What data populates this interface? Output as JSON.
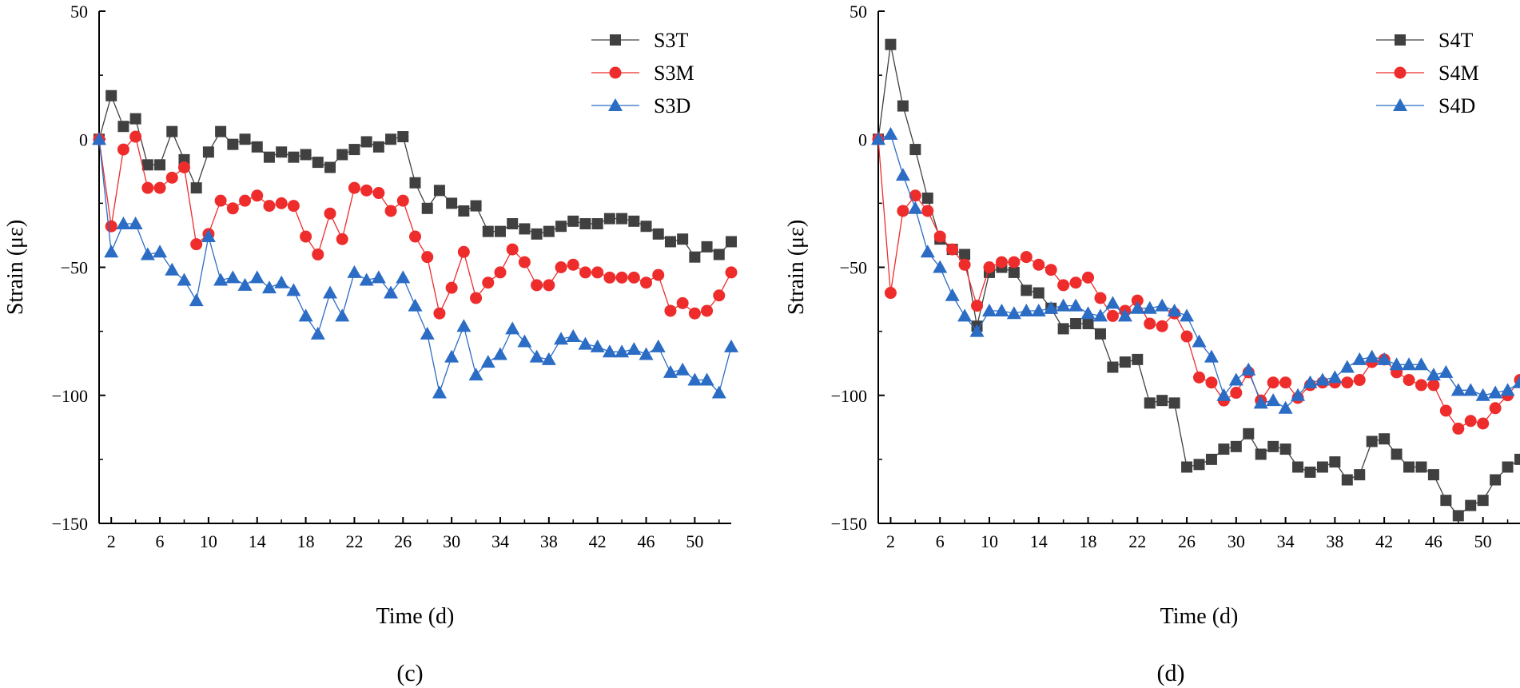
{
  "colors": {
    "T": "#404040",
    "M": "#ee2c2c",
    "D": "#2b6cc4"
  },
  "chart_data": [
    {
      "type": "line",
      "caption": "(c)",
      "xlabel": "Time (d)",
      "ylabel": "Strain (με)",
      "xlim": [
        1,
        53
      ],
      "ylim": [
        -150,
        50
      ],
      "xticks": [
        2,
        6,
        10,
        14,
        18,
        22,
        26,
        30,
        34,
        38,
        42,
        46,
        50
      ],
      "yticks": [
        50,
        0,
        -50,
        -100,
        -150
      ],
      "legend_position": "top-right",
      "series": [
        {
          "name": "S3T",
          "marker": "square",
          "colorKey": "T",
          "values": [
            0,
            17,
            5,
            8,
            -10,
            -10,
            3,
            -8,
            -19,
            -5,
            3,
            -2,
            0,
            -3,
            -7,
            -5,
            -7,
            -6,
            -9,
            -11,
            -6,
            -4,
            -1,
            -3,
            0,
            1,
            -17,
            -27,
            -20,
            -25,
            -28,
            -26,
            -36,
            -36,
            -33,
            -35,
            -37,
            -36,
            -34,
            -32,
            -33,
            -33,
            -31,
            -31,
            -32,
            -34,
            -37,
            -40,
            -39,
            -46,
            -42,
            -45,
            -40
          ]
        },
        {
          "name": "S3M",
          "marker": "circle",
          "colorKey": "M",
          "values": [
            0,
            -34,
            -4,
            1,
            -19,
            -19,
            -15,
            -11,
            -41,
            -37,
            -24,
            -27,
            -24,
            -22,
            -26,
            -25,
            -26,
            -38,
            -45,
            -29,
            -39,
            -19,
            -20,
            -21,
            -28,
            -24,
            -38,
            -46,
            -68,
            -58,
            -44,
            -62,
            -56,
            -52,
            -43,
            -48,
            -57,
            -57,
            -50,
            -49,
            -52,
            -52,
            -54,
            -54,
            -54,
            -56,
            -53,
            -67,
            -64,
            -68,
            -67,
            -61,
            -52
          ]
        },
        {
          "name": "S3D",
          "marker": "triangle",
          "colorKey": "D",
          "values": [
            0,
            -44,
            -33,
            -33,
            -45,
            -44,
            -51,
            -55,
            -63,
            -38,
            -55,
            -54,
            -57,
            -54,
            -58,
            -56,
            -59,
            -69,
            -76,
            -60,
            -69,
            -52,
            -55,
            -54,
            -60,
            -54,
            -65,
            -76,
            -99,
            -85,
            -73,
            -92,
            -87,
            -84,
            -74,
            -79,
            -85,
            -86,
            -78,
            -77,
            -80,
            -81,
            -83,
            -83,
            -82,
            -84,
            -81,
            -91,
            -90,
            -94,
            -94,
            -99,
            -81
          ]
        }
      ]
    },
    {
      "type": "line",
      "caption": "(d)",
      "xlabel": "Time (d)",
      "ylabel": "Strain (με)",
      "xlim": [
        1,
        53
      ],
      "ylim": [
        -150,
        50
      ],
      "xticks": [
        2,
        6,
        10,
        14,
        18,
        22,
        26,
        30,
        34,
        38,
        42,
        46,
        50
      ],
      "yticks": [
        50,
        0,
        -50,
        -100,
        -150
      ],
      "legend_position": "top-right",
      "series": [
        {
          "name": "S4T",
          "marker": "square",
          "colorKey": "T",
          "values": [
            0,
            37,
            13,
            -4,
            -23,
            -39,
            -43,
            -45,
            -73,
            -52,
            -50,
            -52,
            -59,
            -60,
            -66,
            -74,
            -72,
            -72,
            -76,
            -89,
            -87,
            -86,
            -103,
            -102,
            -103,
            -128,
            -127,
            -125,
            -121,
            -120,
            -115,
            -123,
            -120,
            -121,
            -128,
            -130,
            -128,
            -126,
            -133,
            -131,
            -118,
            -117,
            -123,
            -128,
            -128,
            -131,
            -141,
            -147,
            -143,
            -141,
            -133,
            -128,
            -125
          ]
        },
        {
          "name": "S4M",
          "marker": "circle",
          "colorKey": "M",
          "values": [
            0,
            -60,
            -28,
            -22,
            -28,
            -38,
            -43,
            -49,
            -65,
            -50,
            -48,
            -48,
            -46,
            -49,
            -51,
            -57,
            -56,
            -54,
            -62,
            -69,
            -67,
            -63,
            -72,
            -73,
            -68,
            -77,
            -93,
            -95,
            -102,
            -99,
            -91,
            -102,
            -95,
            -95,
            -101,
            -96,
            -95,
            -95,
            -95,
            -94,
            -87,
            -86,
            -91,
            -94,
            -96,
            -96,
            -106,
            -113,
            -110,
            -111,
            -105,
            -100,
            -94
          ]
        },
        {
          "name": "S4D",
          "marker": "triangle",
          "colorKey": "D",
          "values": [
            0,
            2,
            -14,
            -27,
            -44,
            -50,
            -61,
            -69,
            -75,
            -67,
            -67,
            -68,
            -67,
            -67,
            -66,
            -65,
            -65,
            -68,
            -69,
            -64,
            -69,
            -66,
            -66,
            -65,
            -67,
            -69,
            -79,
            -85,
            -100,
            -94,
            -90,
            -103,
            -102,
            -105,
            -100,
            -95,
            -94,
            -93,
            -89,
            -86,
            -85,
            -86,
            -88,
            -88,
            -88,
            -92,
            -91,
            -98,
            -98,
            -100,
            -99,
            -98,
            -95
          ]
        }
      ]
    }
  ]
}
